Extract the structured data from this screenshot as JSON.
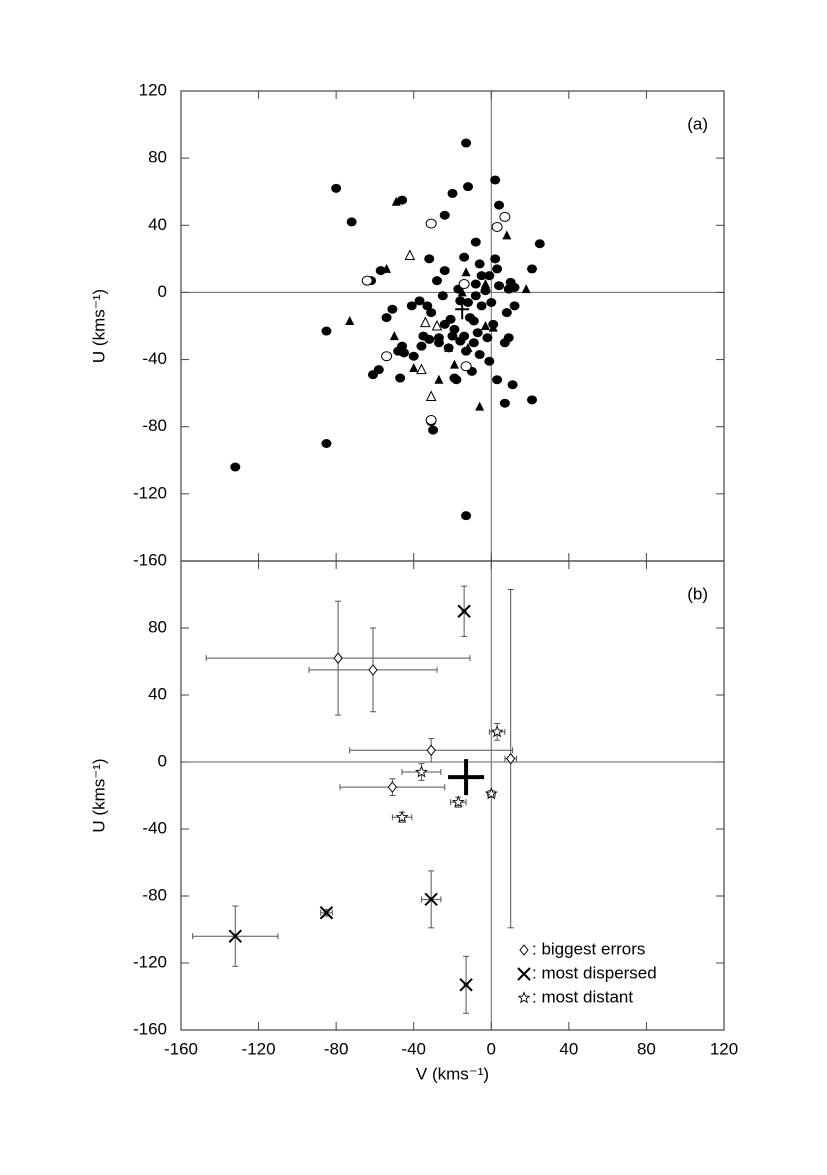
{
  "chart_data": [
    {
      "type": "scatter",
      "panel_label": "(a)",
      "ylabel": "U (kms⁻¹)",
      "xlim": [
        -160,
        120
      ],
      "ylim": [
        -160,
        120
      ],
      "xticks": [
        -160,
        -120,
        -80,
        -40,
        0,
        40,
        80,
        120
      ],
      "yticks": [
        120,
        80,
        40,
        0,
        -40,
        -80,
        -120,
        -160
      ],
      "series": [
        {
          "marker": "filled-circle",
          "color": "#000000",
          "x": [
            -80,
            -46,
            -13,
            -12,
            2,
            -72,
            -20,
            -24,
            4,
            -8,
            -132,
            -85,
            -85,
            -13,
            -30,
            -31,
            21,
            7,
            11,
            -58,
            -61,
            -47,
            -19,
            -18,
            -40,
            -48,
            -46,
            -36,
            -32,
            -27,
            -24,
            -21,
            -19,
            -16,
            -13,
            -9,
            -6,
            -1,
            -10,
            7,
            9,
            3,
            -54,
            -41,
            -37,
            -31,
            -25,
            -17,
            -12,
            -8,
            -5,
            0,
            4,
            9,
            12,
            8,
            -1,
            3,
            -6,
            -14,
            -28,
            -24,
            -32,
            -9,
            -2,
            -5,
            2,
            21,
            25,
            10,
            -57,
            -62,
            -14,
            -3,
            -51,
            -35,
            -27,
            -22,
            -7,
            -16,
            -11,
            -20,
            1,
            -8,
            -33,
            12,
            -45
          ],
          "values": [
            62,
            55,
            89,
            63,
            67,
            42,
            59,
            46,
            52,
            30,
            -104,
            -90,
            -23,
            -133,
            -82,
            -77,
            -64,
            -66,
            -55,
            -46,
            -49,
            -51,
            -51,
            -52,
            -38,
            -35,
            -32,
            -32,
            -28,
            -27,
            -19,
            -16,
            -22,
            -29,
            -35,
            -30,
            -37,
            -41,
            -47,
            -30,
            -27,
            -52,
            -15,
            -8,
            -5,
            -12,
            -2,
            2,
            -6,
            -2,
            -8,
            -6,
            4,
            2,
            -8,
            -12,
            10,
            14,
            17,
            21,
            7,
            13,
            20,
            -17,
            -27,
            10,
            20,
            14,
            29,
            6,
            13,
            7,
            -26,
            1,
            -10,
            -26,
            -30,
            -33,
            -24,
            -5,
            -15,
            -26,
            -19,
            5,
            -8,
            3,
            -36
          ]
        },
        {
          "marker": "filled-triangle",
          "color": "#000000",
          "x": [
            -49,
            -73,
            -50,
            -54,
            8,
            18,
            -22,
            -13,
            -15,
            -3,
            -27,
            -19,
            -6,
            -40,
            1,
            -12,
            -3
          ],
          "values": [
            54,
            -17,
            -26,
            14,
            34,
            2,
            -33,
            12,
            0,
            -20,
            -52,
            -43,
            -68,
            -45,
            -21,
            -33,
            5
          ]
        },
        {
          "marker": "open-circle",
          "color": "#000000",
          "x": [
            -31,
            3,
            7,
            -54,
            -13,
            -31,
            -14,
            -64
          ],
          "values": [
            41,
            39,
            45,
            -38,
            -44,
            -76,
            5,
            7
          ]
        },
        {
          "marker": "open-triangle",
          "color": "#000000",
          "x": [
            -42,
            -36,
            -31,
            -34,
            -28
          ],
          "values": [
            22,
            -46,
            -62,
            -18,
            -20
          ]
        },
        {
          "marker": "plus",
          "color": "#000000",
          "x": [
            -15
          ],
          "values": [
            -10
          ]
        }
      ]
    },
    {
      "type": "scatter",
      "panel_label": "(b)",
      "ylabel": "U (kms⁻¹)",
      "xlabel": "V (kms⁻¹)",
      "xlim": [
        -160,
        120
      ],
      "ylim": [
        -160,
        120
      ],
      "xticks": [
        -160,
        -120,
        -80,
        -40,
        0,
        40,
        80,
        120
      ],
      "yticks": [
        80,
        40,
        0,
        -40,
        -80,
        -120,
        -160
      ],
      "legend": "lower right",
      "series": [
        {
          "name": ": biggest errors",
          "marker": "diamond",
          "color": "#000000",
          "x": [
            -79,
            -61,
            -31,
            -51,
            10
          ],
          "values": [
            62,
            55,
            7,
            -15,
            2
          ],
          "xerr": [
            68,
            33,
            42,
            27,
            3
          ],
          "yerr": [
            34,
            25,
            7,
            5,
            101
          ]
        },
        {
          "name": ": most dispersed",
          "marker": "x",
          "color": "#000000",
          "x": [
            -14,
            -132,
            -85,
            -31,
            -13
          ],
          "values": [
            90,
            -104,
            -90,
            -82,
            -133
          ],
          "xerr": [
            1,
            22,
            3,
            5,
            1
          ],
          "yerr": [
            15,
            18,
            2,
            17,
            17
          ]
        },
        {
          "name": ": most distant",
          "marker": "star",
          "color": "#000000",
          "x": [
            3,
            -36,
            -17,
            0,
            -46
          ],
          "values": [
            18,
            -6,
            -24,
            -19,
            -33
          ],
          "xerr": [
            4,
            10,
            4,
            2,
            5
          ],
          "yerr": [
            5,
            5,
            3,
            2,
            3
          ]
        },
        {
          "marker": "big-plus",
          "color": "#000000",
          "x": [
            -13
          ],
          "values": [
            -9
          ]
        }
      ]
    }
  ]
}
